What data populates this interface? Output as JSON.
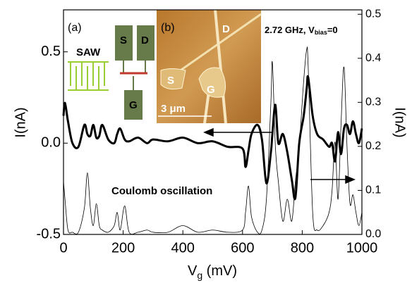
{
  "chart_data": {
    "type": "line",
    "x_label": {
      "main": "V",
      "sub": "g",
      "unit": " (mV)"
    },
    "y_label": "I(nA)",
    "y2_label": "I(nA)",
    "annotations": {
      "panel_a": "(a)",
      "saw": "SAW",
      "s_box": "S",
      "d_box": "D",
      "g_box": "G",
      "panel_b": "(b)",
      "img_d": "D",
      "img_s": "S",
      "img_g": "G",
      "scale": "3 μm",
      "freq": "2.72 GHz, V",
      "freq_sub": "bias",
      "freq_end": "=0",
      "coulomb": "Coulomb oscillation"
    },
    "x": [
      0,
      5,
      15,
      30,
      50,
      70,
      80,
      90,
      100,
      110,
      120,
      130,
      150,
      170,
      180,
      190,
      205,
      220,
      250,
      280,
      300,
      350,
      400,
      450,
      500,
      550,
      600,
      610,
      620,
      630,
      650,
      665,
      680,
      695,
      700,
      710,
      720,
      735,
      750,
      765,
      777,
      790,
      805,
      815,
      820,
      835,
      850,
      870,
      890,
      900,
      910,
      920,
      930,
      940,
      950,
      960,
      970,
      980,
      990,
      1000
    ],
    "series": [
      {
        "color": "#000000",
        "width": 3,
        "values": [
          0.15,
          0.22,
          0.12,
          0.0,
          -0.02,
          0.1,
          0.05,
          0.04,
          0.1,
          0.03,
          0.04,
          0.1,
          0.02,
          0.0,
          0.05,
          0.08,
          0.02,
          0.01,
          0.03,
          0.0,
          0.02,
          0.01,
          0.03,
          0.0,
          0.01,
          -0.02,
          -0.03,
          -0.13,
          -0.04,
          0.05,
          0.1,
          0.02,
          -0.22,
          -0.05,
          0.05,
          0.21,
          0.0,
          0.05,
          -0.05,
          -0.2,
          -0.3,
          0.0,
          0.15,
          0.3,
          0.36,
          0.15,
          0.05,
          0.02,
          -0.02,
          0.0,
          -0.1,
          0.06,
          -0.06,
          0.08,
          0.1,
          0.05,
          0.12,
          0.05,
          0.0,
          0.08
        ]
      },
      {
        "color": "#000000",
        "width": 0.8,
        "axis": "y2",
        "values": [
          0.12,
          0.08,
          0.01,
          0.005,
          0.005,
          0.06,
          0.14,
          0.06,
          0.02,
          0.07,
          0.02,
          0.01,
          0.005,
          0.02,
          0.05,
          0.01,
          0.065,
          0.005,
          0.005,
          0.01,
          0.005,
          0.005,
          0.02,
          0.005,
          0.01,
          0.005,
          0.01,
          0.05,
          0.11,
          0.04,
          0.005,
          0.01,
          0.08,
          0.3,
          0.39,
          0.2,
          0.12,
          0.03,
          0.08,
          0.03,
          0.12,
          0.2,
          0.35,
          0.42,
          0.38,
          0.05,
          0.01,
          0.02,
          0.05,
          0.1,
          0.21,
          0.08,
          0.25,
          0.38,
          0.2,
          0.07,
          0.09,
          0.05,
          0.02,
          0.05
        ]
      }
    ],
    "xlim": [
      0,
      1000
    ],
    "xticks": [
      0,
      200,
      400,
      600,
      800,
      1000
    ],
    "ylim": [
      -0.5,
      0.73
    ],
    "yticks": [
      -0.5,
      {
        "value": 0,
        "label": "0.0"
      },
      0.5
    ],
    "y2lim": [
      0,
      0.51
    ],
    "y2ticks": [
      {
        "value": 0,
        "label": "0.0"
      },
      0.1,
      0.2,
      0.3,
      0.4,
      0.5
    ]
  }
}
